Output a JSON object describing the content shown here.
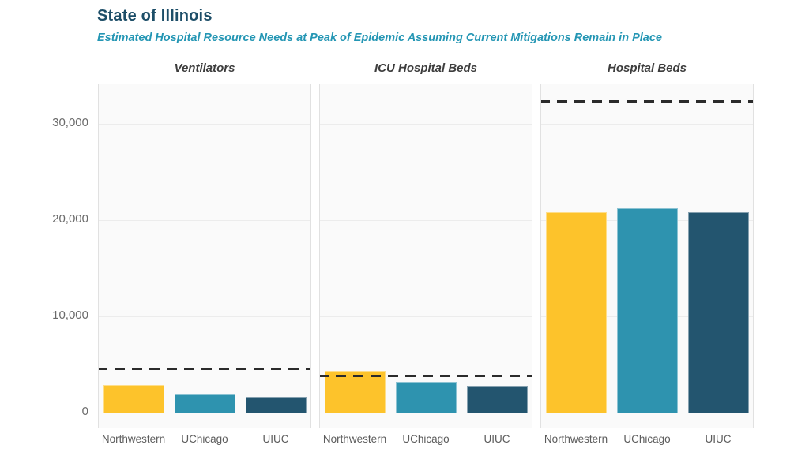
{
  "header": {
    "title": "State of Illinois",
    "subtitle": "Estimated Hospital Resource Needs at Peak of Epidemic Assuming Current Mitigations Remain in Place"
  },
  "chart_data": {
    "type": "bar",
    "title": "State of Illinois",
    "subtitle": "Estimated Hospital Resource Needs at Peak of Epidemic Assuming Current Mitigations Remain in Place",
    "categories": [
      "Northwestern",
      "UChicago",
      "UIUC"
    ],
    "facets": [
      {
        "title": "Ventilators",
        "capacity_line": 4600,
        "values": [
          2900,
          1900,
          1650
        ]
      },
      {
        "title": "ICU Hospital Beds",
        "capacity_line": 3900,
        "values": [
          4400,
          3200,
          2800
        ]
      },
      {
        "title": "Hospital Beds",
        "capacity_line": 32400,
        "values": [
          20800,
          21200,
          20800
        ]
      }
    ],
    "yticks": [
      0,
      10000,
      20000,
      30000
    ],
    "ytick_labels": [
      "0",
      "10,000",
      "20,000",
      "30,000"
    ],
    "ylim": [
      -1700,
      34100
    ],
    "grid": true,
    "legend_position": "none",
    "capacity_line_style": "dashed"
  },
  "colors": {
    "title": "#1d4e68",
    "subtitle": "#2496b4",
    "bar_northwestern": "#FDC32B",
    "bar_uchicago": "#2E93AF",
    "bar_uiuc": "#23556F",
    "capacity_line": "#2b2b2b",
    "panel_background": "#fafafa",
    "panel_border": "#e1e1e1",
    "gridline": "#ececec",
    "axis_text": "#6a6a6a",
    "category_text": "#5c5c5c",
    "facet_title_text": "#3d3d3d"
  }
}
